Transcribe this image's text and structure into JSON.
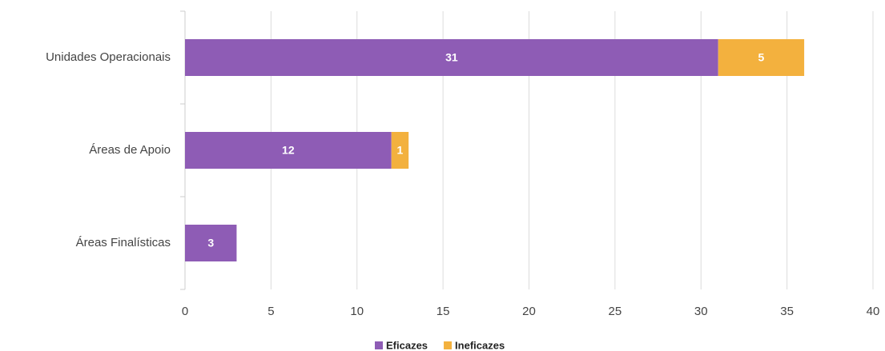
{
  "chart_data": {
    "type": "bar",
    "orientation": "horizontal",
    "stacked": true,
    "categories": [
      "Unidades Operacionais",
      "Áreas de Apoio",
      "Áreas Finalísticas"
    ],
    "series": [
      {
        "name": "Eficazes",
        "color": "#8e5cb5",
        "values": [
          31,
          12,
          3
        ]
      },
      {
        "name": "Ineficazes",
        "color": "#f3b13e",
        "values": [
          5,
          1,
          null
        ]
      }
    ],
    "xlim": [
      0,
      40
    ],
    "xticks": [
      0,
      5,
      10,
      15,
      20,
      25,
      30,
      35,
      40
    ],
    "grid": true,
    "legend": "bottom"
  }
}
